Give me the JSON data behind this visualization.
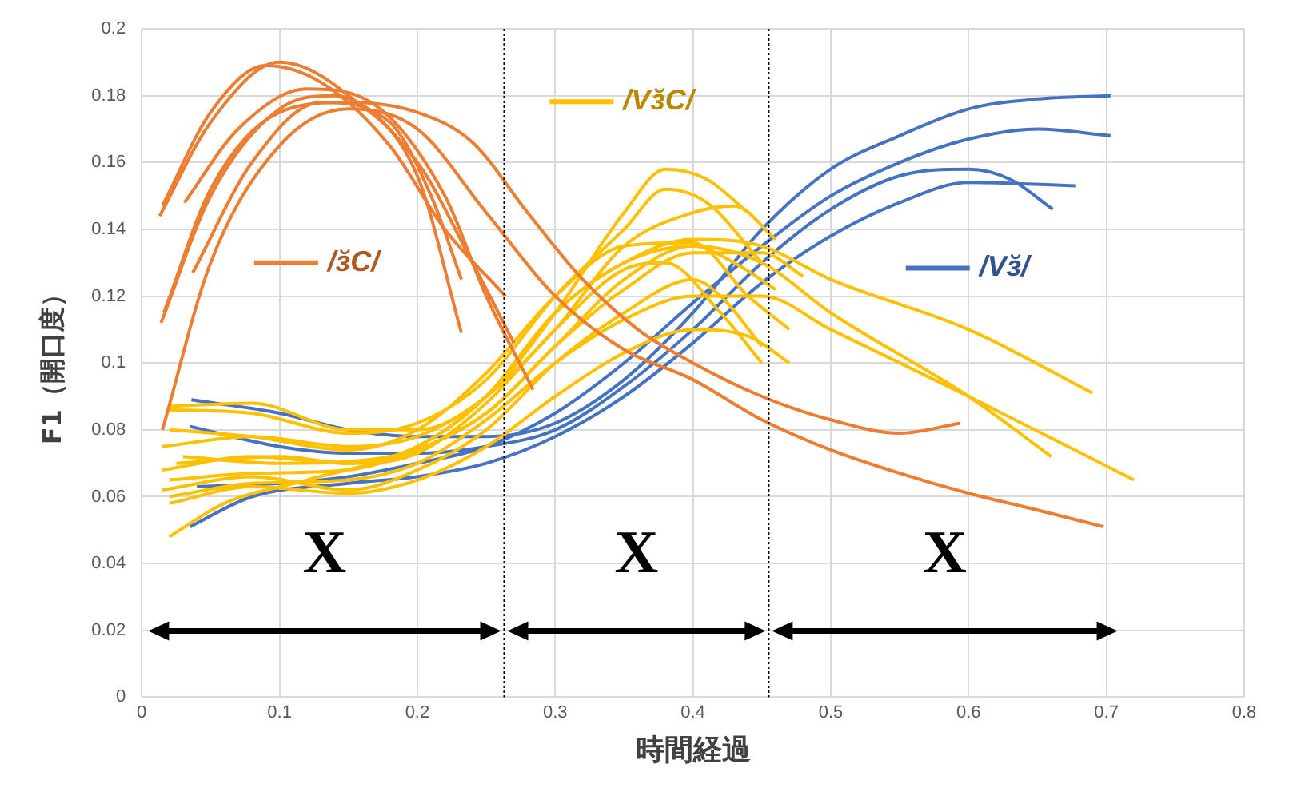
{
  "chart_data": {
    "type": "line",
    "xlabel": "時間経過",
    "ylabel": "F1（開口度）",
    "xlim": [
      0,
      0.8
    ],
    "xticks": [
      0,
      0.1,
      0.2,
      0.3,
      0.4,
      0.5,
      0.6,
      0.7,
      0.8
    ],
    "ylim": [
      0,
      0.2
    ],
    "yticks": [
      0,
      0.02,
      0.04,
      0.06,
      0.08,
      0.1,
      0.12,
      0.14,
      0.16,
      0.18,
      0.2
    ],
    "grid": true,
    "marker": "none",
    "legend": "top",
    "ref_lines": [
      {
        "axis": "x",
        "value": 0.263,
        "color": "#000000",
        "line_style": "dotted"
      },
      {
        "axis": "x",
        "value": 0.455,
        "color": "#000000",
        "line_style": "dotted"
      }
    ],
    "annotations": [
      "X",
      "X",
      "X"
    ],
    "series": [
      {
        "name": "/ɜ̆C/",
        "color": "#ed7d31",
        "x": [
          0.013,
          0.05,
          0.1,
          0.15,
          0.2,
          0.232
        ],
        "values": [
          0.144,
          0.172,
          0.19,
          0.18,
          0.156,
          0.109
        ]
      },
      {
        "color": "#ed7d31",
        "x": [
          0.015,
          0.05,
          0.09,
          0.13,
          0.18,
          0.22,
          0.264
        ],
        "values": [
          0.147,
          0.175,
          0.189,
          0.184,
          0.165,
          0.14,
          0.12
        ]
      },
      {
        "color": "#ed7d31",
        "x": [
          0.014,
          0.05,
          0.1,
          0.14,
          0.2,
          0.24,
          0.27
        ],
        "values": [
          0.112,
          0.15,
          0.176,
          0.18,
          0.16,
          0.13,
          0.106
        ]
      },
      {
        "color": "#ed7d31",
        "x": [
          0.031,
          0.07,
          0.12,
          0.17,
          0.22,
          0.25,
          0.284
        ],
        "values": [
          0.148,
          0.17,
          0.182,
          0.177,
          0.15,
          0.12,
          0.092
        ]
      },
      {
        "color": "#ed7d31",
        "x": [
          0.037,
          0.08,
          0.13,
          0.18,
          0.21,
          0.232
        ],
        "values": [
          0.127,
          0.16,
          0.178,
          0.172,
          0.15,
          0.125
        ]
      },
      {
        "color": "#ed7d31",
        "x": [
          0.015,
          0.05,
          0.1,
          0.15,
          0.2,
          0.25,
          0.3,
          0.35,
          0.4,
          0.45,
          0.5,
          0.55,
          0.6,
          0.65,
          0.698
        ],
        "values": [
          0.08,
          0.13,
          0.165,
          0.176,
          0.17,
          0.145,
          0.12,
          0.104,
          0.095,
          0.083,
          0.074,
          0.067,
          0.061,
          0.056,
          0.051
        ]
      },
      {
        "color": "#ed7d31",
        "x": [
          0.016,
          0.05,
          0.1,
          0.15,
          0.2,
          0.24,
          0.28,
          0.32,
          0.36,
          0.4,
          0.45,
          0.5,
          0.55,
          0.594
        ],
        "values": [
          0.115,
          0.152,
          0.175,
          0.178,
          0.175,
          0.166,
          0.145,
          0.125,
          0.11,
          0.1,
          0.09,
          0.083,
          0.079,
          0.082
        ]
      },
      {
        "name": "/Vɜ̆C/",
        "color": "#ffc000",
        "x": [
          0.02,
          0.08,
          0.15,
          0.2,
          0.25,
          0.3,
          0.35,
          0.38,
          0.41,
          0.44
        ],
        "values": [
          0.087,
          0.088,
          0.08,
          0.08,
          0.09,
          0.115,
          0.145,
          0.158,
          0.155,
          0.145
        ]
      },
      {
        "color": "#ffc000",
        "x": [
          0.02,
          0.08,
          0.15,
          0.2,
          0.25,
          0.3,
          0.35,
          0.38,
          0.41,
          0.45
        ],
        "values": [
          0.086,
          0.085,
          0.079,
          0.082,
          0.095,
          0.12,
          0.14,
          0.152,
          0.148,
          0.13
        ]
      },
      {
        "color": "#ffc000",
        "x": [
          0.015,
          0.08,
          0.15,
          0.2,
          0.25,
          0.3,
          0.35,
          0.4,
          0.43,
          0.46
        ],
        "values": [
          0.075,
          0.078,
          0.075,
          0.078,
          0.09,
          0.11,
          0.135,
          0.145,
          0.147,
          0.137
        ]
      },
      {
        "color": "#ffc000",
        "x": [
          0.015,
          0.08,
          0.15,
          0.2,
          0.25,
          0.3,
          0.35,
          0.4,
          0.45,
          0.5,
          0.6,
          0.69
        ],
        "values": [
          0.068,
          0.072,
          0.07,
          0.075,
          0.09,
          0.115,
          0.13,
          0.137,
          0.135,
          0.125,
          0.11,
          0.091
        ]
      },
      {
        "color": "#ffc000",
        "x": [
          0.02,
          0.08,
          0.15,
          0.2,
          0.25,
          0.3,
          0.35,
          0.4,
          0.45,
          0.5,
          0.6,
          0.66
        ],
        "values": [
          0.065,
          0.067,
          0.068,
          0.074,
          0.085,
          0.105,
          0.125,
          0.135,
          0.13,
          0.115,
          0.09,
          0.072
        ]
      },
      {
        "color": "#ffc000",
        "x": [
          0.02,
          0.08,
          0.15,
          0.2,
          0.25,
          0.3,
          0.35,
          0.4,
          0.45,
          0.5,
          0.6,
          0.72
        ],
        "values": [
          0.06,
          0.064,
          0.065,
          0.07,
          0.083,
          0.1,
          0.113,
          0.12,
          0.12,
          0.11,
          0.09,
          0.065
        ]
      },
      {
        "color": "#ffc000",
        "x": [
          0.015,
          0.08,
          0.15,
          0.2,
          0.25,
          0.3,
          0.35,
          0.4,
          0.42,
          0.45
        ],
        "values": [
          0.062,
          0.066,
          0.062,
          0.068,
          0.08,
          0.1,
          0.115,
          0.125,
          0.12,
          0.105
        ]
      },
      {
        "color": "#ffc000",
        "x": [
          0.02,
          0.08,
          0.15,
          0.2,
          0.25,
          0.3,
          0.35,
          0.4,
          0.44,
          0.47
        ],
        "values": [
          0.058,
          0.063,
          0.061,
          0.065,
          0.075,
          0.09,
          0.103,
          0.11,
          0.108,
          0.1
        ]
      },
      {
        "color": "#ffc000",
        "x": [
          0.02,
          0.06,
          0.12,
          0.2,
          0.25,
          0.3,
          0.35,
          0.4,
          0.43,
          0.46
        ],
        "values": [
          0.048,
          0.058,
          0.065,
          0.075,
          0.09,
          0.115,
          0.13,
          0.135,
          0.13,
          0.122
        ]
      },
      {
        "color": "#ffc000",
        "x": [
          0.025,
          0.1,
          0.15,
          0.2,
          0.25,
          0.3,
          0.35,
          0.38,
          0.42,
          0.45
        ],
        "values": [
          0.07,
          0.072,
          0.07,
          0.073,
          0.088,
          0.11,
          0.128,
          0.13,
          0.115,
          0.1
        ]
      },
      {
        "color": "#ffc000",
        "x": [
          0.02,
          0.08,
          0.15,
          0.2,
          0.25,
          0.3,
          0.35,
          0.4,
          0.44,
          0.47
        ],
        "values": [
          0.08,
          0.078,
          0.074,
          0.08,
          0.097,
          0.12,
          0.135,
          0.136,
          0.12,
          0.11
        ]
      },
      {
        "color": "#ffc000",
        "x": [
          0.03,
          0.1,
          0.18,
          0.25,
          0.3,
          0.35,
          0.4,
          0.45,
          0.48
        ],
        "values": [
          0.072,
          0.07,
          0.072,
          0.085,
          0.105,
          0.122,
          0.133,
          0.133,
          0.126
        ]
      },
      {
        "name": "/Vɜ̆/",
        "color": "#4472c4",
        "x": [
          0.036,
          0.1,
          0.15,
          0.2,
          0.25,
          0.3,
          0.35,
          0.4,
          0.45,
          0.5,
          0.55,
          0.6,
          0.65,
          0.703
        ],
        "values": [
          0.089,
          0.085,
          0.08,
          0.078,
          0.078,
          0.082,
          0.095,
          0.115,
          0.14,
          0.158,
          0.168,
          0.176,
          0.179,
          0.18
        ]
      },
      {
        "color": "#4472c4",
        "x": [
          0.035,
          0.1,
          0.15,
          0.2,
          0.25,
          0.3,
          0.35,
          0.4,
          0.45,
          0.5,
          0.55,
          0.6,
          0.63,
          0.661
        ],
        "values": [
          0.081,
          0.075,
          0.073,
          0.073,
          0.075,
          0.08,
          0.093,
          0.11,
          0.13,
          0.146,
          0.156,
          0.158,
          0.155,
          0.146
        ]
      },
      {
        "color": "#4472c4",
        "x": [
          0.04,
          0.1,
          0.15,
          0.2,
          0.25,
          0.3,
          0.35,
          0.4,
          0.45,
          0.5,
          0.55,
          0.6,
          0.65,
          0.703
        ],
        "values": [
          0.063,
          0.064,
          0.066,
          0.07,
          0.075,
          0.085,
          0.1,
          0.118,
          0.135,
          0.15,
          0.16,
          0.167,
          0.17,
          0.168
        ]
      },
      {
        "color": "#4472c4",
        "x": [
          0.035,
          0.08,
          0.15,
          0.2,
          0.25,
          0.3,
          0.35,
          0.4,
          0.45,
          0.5,
          0.55,
          0.6,
          0.678
        ],
        "values": [
          0.051,
          0.06,
          0.064,
          0.066,
          0.07,
          0.078,
          0.09,
          0.106,
          0.124,
          0.138,
          0.148,
          0.154,
          0.153
        ]
      }
    ]
  }
}
